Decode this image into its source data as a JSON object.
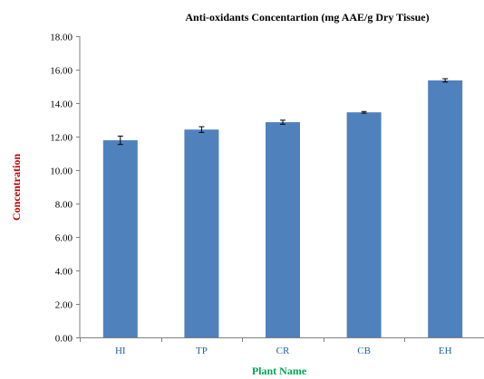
{
  "chart_data": {
    "type": "bar",
    "title": "Anti-oxidants Concentartion (mg AAE/g Dry Tissue)",
    "xlabel": "Plant Name",
    "ylabel": "Concentration",
    "categories": [
      "HI",
      "TP",
      "CR",
      "CB",
      "EH"
    ],
    "values": [
      11.78,
      12.42,
      12.86,
      13.45,
      15.36
    ],
    "errors": [
      0.25,
      0.17,
      0.12,
      0.05,
      0.1
    ],
    "ylim": [
      0,
      18
    ],
    "yticks": [
      "0.00",
      "2.00",
      "4.00",
      "6.00",
      "8.00",
      "10.00",
      "12.00",
      "14.00",
      "16.00",
      "18.00"
    ],
    "grid": false,
    "legend": "none",
    "colors": {
      "bar": "#4f81bd",
      "xlabel": "#00a651",
      "ylabel": "#c00000",
      "xtick": "#1f5fa8"
    }
  }
}
